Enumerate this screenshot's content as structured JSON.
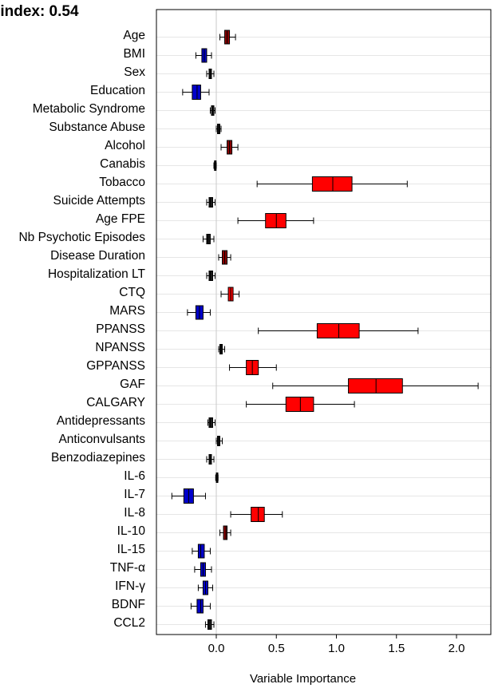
{
  "chart_data": {
    "type": "boxplot",
    "title": "-index: 0.54",
    "xlabel": "Variable Importance",
    "ylabel": "",
    "xlim": [
      -0.5,
      2.35
    ],
    "xticks": [
      "0.0",
      "0.5",
      "1.0",
      "1.5",
      "2.0"
    ],
    "xtick_values": [
      0.0,
      0.5,
      1.0,
      1.5,
      2.0
    ],
    "reference_line": 0.0,
    "grid": "horizontal",
    "colors": {
      "positive": "#ff0000",
      "weak_positive": "#8b0000",
      "negative": "#0000cc",
      "neutral": "#1a1a1a",
      "frame": "#000000",
      "grid": "#e6e6e6"
    },
    "categories": [
      "Age",
      "BMI",
      "Sex",
      "Education",
      "Metabolic Syndrome",
      "Substance Abuse",
      "Alcohol",
      "Canabis",
      "Tobacco",
      "Suicide Attempts",
      "Age FPE",
      "Nb Psychotic Episodes",
      "Disease Duration",
      "Hospitalization LT",
      "CTQ",
      "MARS",
      "PPANSS",
      "NPANSS",
      "GPPANSS",
      "GAF",
      "CALGARY",
      "Antidepressants",
      "Anticonvulsants",
      "Benzodiazepines",
      "IL-6",
      "IL-7",
      "IL-8",
      "IL-10",
      "IL-15",
      "TNF-α",
      "IFN-γ",
      "BDNF",
      "CCL2"
    ],
    "series": [
      {
        "label": "Age",
        "min": 0.03,
        "q1": 0.07,
        "median": 0.09,
        "q3": 0.11,
        "max": 0.16,
        "color": "weak_positive"
      },
      {
        "label": "BMI",
        "min": -0.17,
        "q1": -0.12,
        "median": -0.1,
        "q3": -0.08,
        "max": -0.04,
        "color": "negative"
      },
      {
        "label": "Sex",
        "min": -0.08,
        "q1": -0.06,
        "median": -0.05,
        "q3": -0.04,
        "max": -0.02,
        "color": "neutral"
      },
      {
        "label": "Education",
        "min": -0.28,
        "q1": -0.2,
        "median": -0.16,
        "q3": -0.13,
        "max": -0.06,
        "color": "negative"
      },
      {
        "label": "Metabolic Syndrome",
        "min": -0.05,
        "q1": -0.04,
        "median": -0.03,
        "q3": -0.02,
        "max": -0.01,
        "color": "neutral"
      },
      {
        "label": "Substance Abuse",
        "min": 0.0,
        "q1": 0.01,
        "median": 0.02,
        "q3": 0.03,
        "max": 0.04,
        "color": "neutral"
      },
      {
        "label": "Alcohol",
        "min": 0.04,
        "q1": 0.09,
        "median": 0.11,
        "q3": 0.13,
        "max": 0.18,
        "color": "weak_positive"
      },
      {
        "label": "Canabis",
        "min": -0.02,
        "q1": -0.015,
        "median": -0.01,
        "q3": -0.005,
        "max": 0.0,
        "color": "neutral"
      },
      {
        "label": "Tobacco",
        "min": 0.34,
        "q1": 0.8,
        "median": 0.97,
        "q3": 1.13,
        "max": 1.59,
        "color": "positive"
      },
      {
        "label": "Suicide Attempts",
        "min": -0.08,
        "q1": -0.06,
        "median": -0.05,
        "q3": -0.03,
        "max": -0.01,
        "color": "neutral"
      },
      {
        "label": "Age FPE",
        "min": 0.18,
        "q1": 0.41,
        "median": 0.5,
        "q3": 0.58,
        "max": 0.81,
        "color": "positive"
      },
      {
        "label": "Nb Psychotic Episodes",
        "min": -0.11,
        "q1": -0.08,
        "median": -0.07,
        "q3": -0.05,
        "max": -0.02,
        "color": "neutral"
      },
      {
        "label": "Disease Duration",
        "min": 0.02,
        "q1": 0.05,
        "median": 0.07,
        "q3": 0.09,
        "max": 0.12,
        "color": "weak_positive"
      },
      {
        "label": "Hospitalization LT",
        "min": -0.08,
        "q1": -0.06,
        "median": -0.05,
        "q3": -0.03,
        "max": -0.01,
        "color": "neutral"
      },
      {
        "label": "CTQ",
        "min": 0.04,
        "q1": 0.1,
        "median": 0.12,
        "q3": 0.14,
        "max": 0.19,
        "color": "positive"
      },
      {
        "label": "MARS",
        "min": -0.24,
        "q1": -0.17,
        "median": -0.14,
        "q3": -0.11,
        "max": -0.05,
        "color": "negative"
      },
      {
        "label": "PPANSS",
        "min": 0.35,
        "q1": 0.84,
        "median": 1.02,
        "q3": 1.19,
        "max": 1.68,
        "color": "positive"
      },
      {
        "label": "NPANSS",
        "min": 0.02,
        "q1": 0.03,
        "median": 0.04,
        "q3": 0.05,
        "max": 0.07,
        "color": "neutral"
      },
      {
        "label": "GPPANSS",
        "min": 0.11,
        "q1": 0.25,
        "median": 0.3,
        "q3": 0.35,
        "max": 0.5,
        "color": "positive"
      },
      {
        "label": "GAF",
        "min": 0.47,
        "q1": 1.1,
        "median": 1.33,
        "q3": 1.55,
        "max": 2.18,
        "color": "positive"
      },
      {
        "label": "CALGARY",
        "min": 0.25,
        "q1": 0.58,
        "median": 0.7,
        "q3": 0.81,
        "max": 1.15,
        "color": "positive"
      },
      {
        "label": "Antidepressants",
        "min": -0.07,
        "q1": -0.06,
        "median": -0.05,
        "q3": -0.03,
        "max": -0.01,
        "color": "neutral"
      },
      {
        "label": "Anticonvulsants",
        "min": 0.0,
        "q1": 0.01,
        "median": 0.02,
        "q3": 0.03,
        "max": 0.05,
        "color": "neutral"
      },
      {
        "label": "Benzodiazepines",
        "min": -0.08,
        "q1": -0.06,
        "median": -0.05,
        "q3": -0.04,
        "max": -0.02,
        "color": "neutral"
      },
      {
        "label": "IL-6",
        "min": -0.005,
        "q1": 0.0,
        "median": 0.005,
        "q3": 0.01,
        "max": 0.015,
        "color": "neutral"
      },
      {
        "label": "IL-7",
        "min": -0.37,
        "q1": -0.27,
        "median": -0.23,
        "q3": -0.19,
        "max": -0.09,
        "color": "negative"
      },
      {
        "label": "IL-8",
        "min": 0.12,
        "q1": 0.29,
        "median": 0.35,
        "q3": 0.4,
        "max": 0.55,
        "color": "positive"
      },
      {
        "label": "IL-10",
        "min": 0.03,
        "q1": 0.06,
        "median": 0.08,
        "q3": 0.09,
        "max": 0.12,
        "color": "weak_positive"
      },
      {
        "label": "IL-15",
        "min": -0.2,
        "q1": -0.15,
        "median": -0.13,
        "q3": -0.1,
        "max": -0.05,
        "color": "negative"
      },
      {
        "label": "TNF-α",
        "min": -0.18,
        "q1": -0.13,
        "median": -0.11,
        "q3": -0.09,
        "max": -0.04,
        "color": "negative"
      },
      {
        "label": "IFN-γ",
        "min": -0.15,
        "q1": -0.11,
        "median": -0.09,
        "q3": -0.07,
        "max": -0.03,
        "color": "negative"
      },
      {
        "label": "BDNF",
        "min": -0.21,
        "q1": -0.16,
        "median": -0.13,
        "q3": -0.11,
        "max": -0.05,
        "color": "negative"
      },
      {
        "label": "CCL2",
        "min": -0.09,
        "q1": -0.07,
        "median": -0.06,
        "q3": -0.04,
        "max": -0.02,
        "color": "neutral"
      }
    ]
  }
}
